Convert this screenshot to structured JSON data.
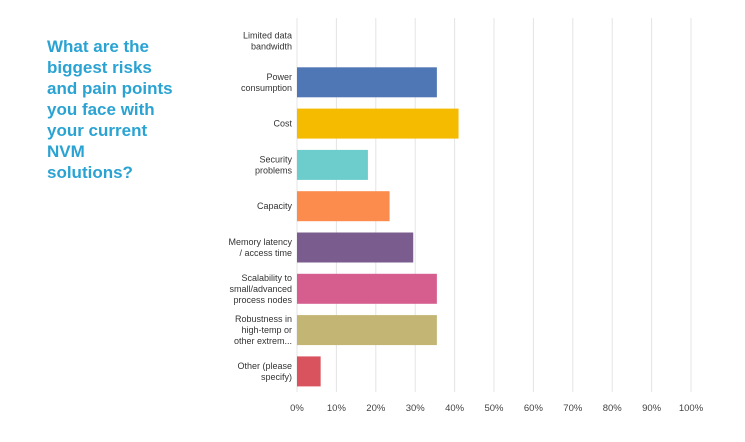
{
  "question_lines": [
    "What are the",
    "biggest risks",
    "and pain points",
    "you face with",
    "your current",
    "NVM",
    "solutions?"
  ],
  "chart_data": {
    "type": "bar",
    "orientation": "horizontal",
    "title": "What are the biggest risks and pain points you face with your current NVM solutions?",
    "categories": [
      [
        "Limited data",
        "bandwidth"
      ],
      [
        "Power",
        "consumption"
      ],
      [
        "Cost"
      ],
      [
        "Security",
        "problems"
      ],
      [
        "Capacity"
      ],
      [
        "Memory latency",
        "/ access time"
      ],
      [
        "Scalability to",
        "small/advanced",
        "process nodes"
      ],
      [
        "Robustness in",
        "high-temp or",
        "other extrem..."
      ],
      [
        "Other (please",
        "specify)"
      ]
    ],
    "values": [
      0,
      35.5,
      41,
      18,
      23.5,
      29.5,
      35.5,
      35.5,
      6
    ],
    "colors": [
      "#4f77b5",
      "#4f77b5",
      "#f5bb00",
      "#6dcdcc",
      "#fc8c4d",
      "#7a5c8e",
      "#d55e8e",
      "#c3b573",
      "#d9535f"
    ],
    "xlim": [
      0,
      100
    ],
    "xticks": [
      "0%",
      "10%",
      "20%",
      "30%",
      "40%",
      "50%",
      "60%",
      "70%",
      "80%",
      "90%",
      "100%"
    ],
    "grid": true,
    "gridColor": "#e4e4e4"
  }
}
